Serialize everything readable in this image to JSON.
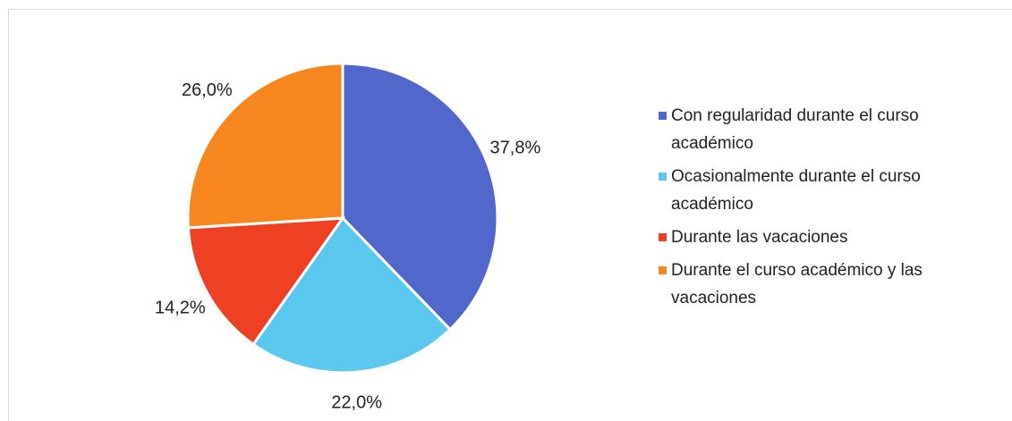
{
  "chart_data": {
    "type": "pie",
    "categories": [
      "Con regularidad durante el curso académico",
      "Ocasionalmente durante el curso académico",
      "Durante las vacaciones",
      "Durante el curso académico y las vacaciones"
    ],
    "values": [
      37.8,
      22.0,
      14.2,
      26.0
    ],
    "value_labels": [
      "37,8%",
      "22,0%",
      "14,2%",
      "26,0%"
    ],
    "colors": [
      "#5068cc",
      "#5bc8f0",
      "#ee4123",
      "#f7861e"
    ],
    "legend": "right"
  }
}
